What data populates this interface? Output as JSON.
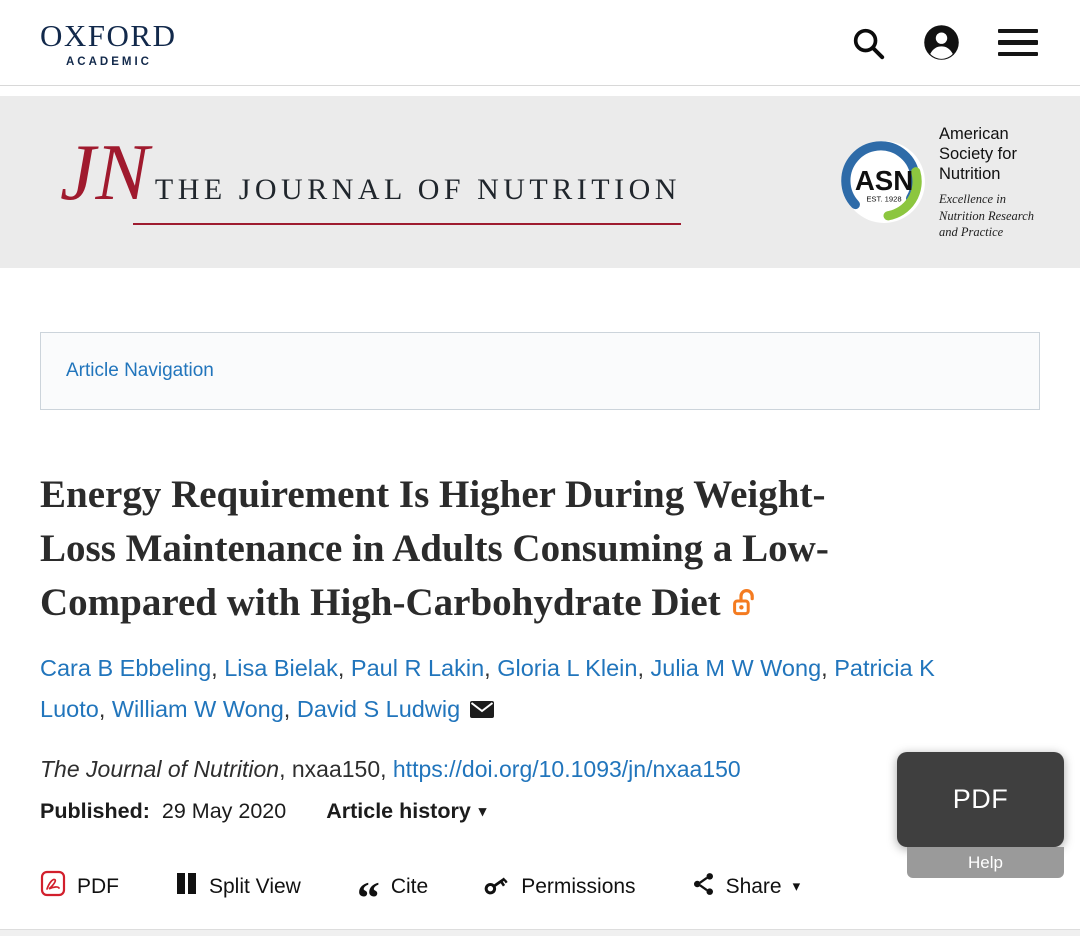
{
  "header": {
    "brand_line1": "OXFORD",
    "brand_line2": "ACADEMIC"
  },
  "banner": {
    "journal_initials": "JN",
    "journal_title": "THE JOURNAL OF NUTRITION",
    "society": {
      "acronym": "ASN",
      "established": "EST. 1928",
      "name_lines": [
        "American",
        "Society for",
        "Nutrition"
      ],
      "tagline_lines": [
        "Excellence in",
        "Nutrition Research",
        "and Practice"
      ]
    }
  },
  "article_nav": {
    "label": "Article Navigation"
  },
  "article": {
    "title_lines": [
      "Energy Requirement Is Higher During Weight-",
      "Loss Maintenance in Adults Consuming a Low-",
      "Compared with High-Carbohydrate Diet"
    ],
    "authors": [
      "Cara B Ebbeling",
      "Lisa Bielak",
      "Paul R Lakin",
      "Gloria L Klein",
      "Julia M W Wong",
      "Patricia K Luoto",
      "William W Wong",
      "David S Ludwig"
    ],
    "journal_name": "The Journal of Nutrition",
    "article_id_segment": ", nxaa150, ",
    "doi_link": "https://doi.org/10.1093/jn/nxaa150",
    "published_label": "Published:",
    "published_date": "29 May 2020",
    "article_history_label": "Article history"
  },
  "toolbar": {
    "pdf_label": "PDF",
    "split_view_label": "Split View",
    "cite_label": "Cite",
    "permissions_label": "Permissions",
    "share_label": "Share"
  },
  "floating": {
    "pdf_label": "PDF",
    "help_label": "Help"
  },
  "icons": {
    "caret_down": "▾",
    "quote": "“"
  },
  "colors": {
    "link_blue": "#2175bc",
    "journal_red": "#9e1b2f",
    "oxford_navy": "#12294b",
    "open_access_orange": "#f47b20",
    "pdf_red": "#d21f2c",
    "banner_gray": "#ebebeb"
  }
}
